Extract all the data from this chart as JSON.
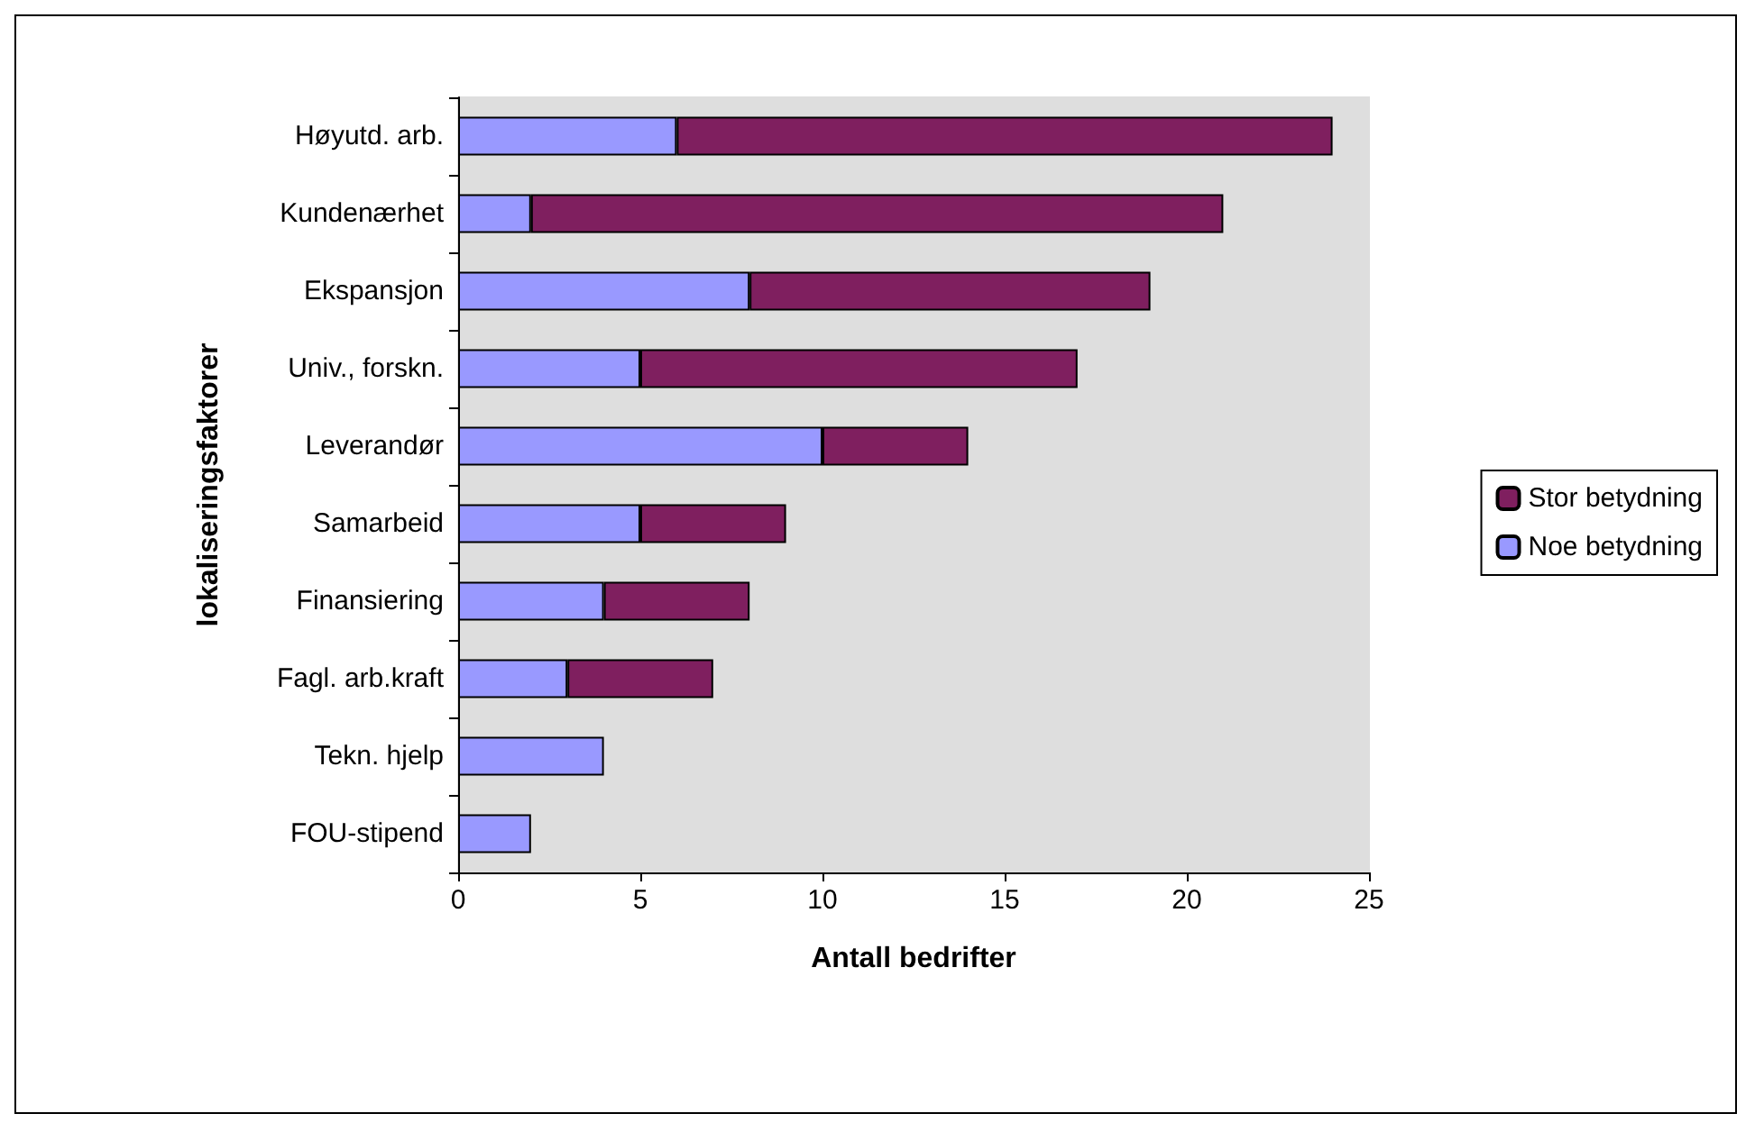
{
  "chart_data": {
    "type": "bar",
    "orientation": "horizontal",
    "stacked": true,
    "xlabel": "Antall bedrifter",
    "ylabel": "lokaliseringsfaktorer",
    "categories": [
      "Høyutd. arb.",
      "Kundenærhet",
      "Ekspansjon",
      "Univ., forskn.",
      "Leverandør",
      "Samarbeid",
      "Finansiering",
      "Fagl. arb.kraft",
      "Tekn. hjelp",
      "FOU-stipend"
    ],
    "series": [
      {
        "name": "Noe betydning",
        "color": "#9999ff",
        "values": [
          6,
          2,
          8,
          5,
          10,
          5,
          4,
          3,
          4,
          2
        ]
      },
      {
        "name": "Stor betydning",
        "color": "#7f1f5f",
        "values": [
          18,
          19,
          11,
          12,
          4,
          4,
          4,
          4,
          null,
          null
        ]
      }
    ],
    "xlim": [
      0,
      25
    ],
    "xticks": [
      0,
      5,
      10,
      15,
      20,
      25
    ],
    "grid": false,
    "legend": "right"
  }
}
